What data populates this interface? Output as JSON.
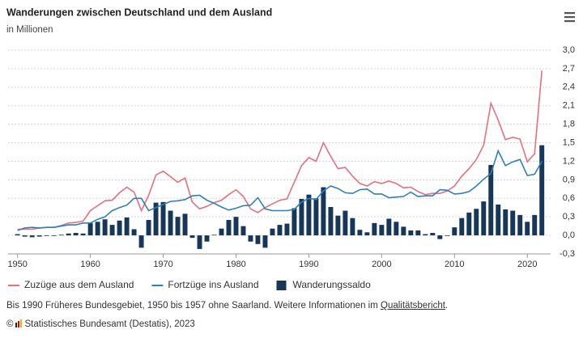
{
  "chart_data": {
    "type": "combo",
    "title": "Wanderungen zwischen Deutschland und dem Ausland",
    "subtitle": "in Millionen",
    "x": [
      1950,
      1951,
      1952,
      1953,
      1954,
      1955,
      1956,
      1957,
      1958,
      1959,
      1960,
      1961,
      1962,
      1963,
      1964,
      1965,
      1966,
      1967,
      1968,
      1969,
      1970,
      1971,
      1972,
      1973,
      1974,
      1975,
      1976,
      1977,
      1978,
      1979,
      1980,
      1981,
      1982,
      1983,
      1984,
      1985,
      1986,
      1987,
      1988,
      1989,
      1990,
      1991,
      1992,
      1993,
      1994,
      1995,
      1996,
      1997,
      1998,
      1999,
      2000,
      2001,
      2002,
      2003,
      2004,
      2005,
      2006,
      2007,
      2008,
      2009,
      2010,
      2011,
      2012,
      2013,
      2014,
      2015,
      2016,
      2017,
      2018,
      2019,
      2020,
      2021,
      2022
    ],
    "series": [
      {
        "name": "Zuzüge aus dem Ausland",
        "type": "line",
        "color": "#e5707f",
        "values": [
          0.1,
          0.1,
          0.1,
          0.12,
          0.13,
          0.13,
          0.16,
          0.2,
          0.21,
          0.23,
          0.4,
          0.48,
          0.56,
          0.57,
          0.69,
          0.78,
          0.7,
          0.4,
          0.65,
          0.98,
          1.04,
          0.95,
          0.86,
          0.93,
          0.54,
          0.43,
          0.47,
          0.53,
          0.57,
          0.66,
          0.74,
          0.63,
          0.43,
          0.37,
          0.45,
          0.51,
          0.57,
          0.59,
          0.86,
          1.13,
          1.26,
          1.2,
          1.5,
          1.28,
          1.08,
          1.1,
          0.96,
          0.84,
          0.8,
          0.87,
          0.84,
          0.88,
          0.84,
          0.77,
          0.78,
          0.71,
          0.66,
          0.68,
          0.68,
          0.72,
          0.8,
          0.96,
          1.08,
          1.23,
          1.46,
          2.14,
          1.87,
          1.55,
          1.59,
          1.56,
          1.19,
          1.32,
          2.67
        ]
      },
      {
        "name": "Fortzüge ins Ausland",
        "type": "line",
        "color": "#2f7fb8",
        "values": [
          0.08,
          0.12,
          0.13,
          0.12,
          0.13,
          0.13,
          0.15,
          0.17,
          0.17,
          0.2,
          0.2,
          0.26,
          0.3,
          0.4,
          0.45,
          0.49,
          0.6,
          0.6,
          0.4,
          0.45,
          0.5,
          0.55,
          0.56,
          0.58,
          0.64,
          0.65,
          0.57,
          0.52,
          0.46,
          0.41,
          0.44,
          0.48,
          0.49,
          0.61,
          0.43,
          0.4,
          0.4,
          0.4,
          0.42,
          0.54,
          0.6,
          0.58,
          0.72,
          0.8,
          0.76,
          0.69,
          0.68,
          0.74,
          0.75,
          0.67,
          0.67,
          0.61,
          0.62,
          0.63,
          0.7,
          0.63,
          0.64,
          0.64,
          0.74,
          0.73,
          0.67,
          0.68,
          0.71,
          0.8,
          0.91,
          1.0,
          1.37,
          1.13,
          1.19,
          1.23,
          0.97,
          0.99,
          1.2
        ]
      },
      {
        "name": "Wanderungssaldo",
        "type": "bar",
        "color": "#16375a",
        "values": [
          0.02,
          -0.02,
          -0.03,
          -0.02,
          -0.01,
          -0.01,
          0.01,
          0.03,
          0.04,
          0.03,
          0.2,
          0.22,
          0.26,
          0.17,
          0.24,
          0.29,
          0.1,
          -0.2,
          0.25,
          0.53,
          0.54,
          0.4,
          0.3,
          0.35,
          -0.04,
          -0.22,
          -0.1,
          0.01,
          0.11,
          0.25,
          0.3,
          0.15,
          -0.1,
          -0.14,
          -0.2,
          0.11,
          0.17,
          0.19,
          0.44,
          0.59,
          0.66,
          0.6,
          0.78,
          0.46,
          0.32,
          0.4,
          0.28,
          0.09,
          0.05,
          0.2,
          0.17,
          0.27,
          0.22,
          0.14,
          0.08,
          0.08,
          0.02,
          0.04,
          -0.06,
          -0.01,
          0.13,
          0.28,
          0.37,
          0.43,
          0.55,
          1.14,
          0.5,
          0.42,
          0.4,
          0.33,
          0.22,
          0.33,
          1.46
        ]
      }
    ],
    "xlim": [
      1948.7,
      2023.2
    ],
    "xticks": [
      1950,
      1960,
      1970,
      1980,
      1990,
      2000,
      2010,
      2020
    ],
    "ylim": [
      -0.3,
      3.0
    ],
    "yticks": [
      {
        "value": -0.3,
        "label": "-0,3"
      },
      {
        "value": 0,
        "label": "0,0"
      },
      {
        "value": 0.3,
        "label": "0,3"
      },
      {
        "value": 0.6,
        "label": "0,6"
      },
      {
        "value": 0.9,
        "label": "0,9"
      },
      {
        "value": 1.2,
        "label": "1,2"
      },
      {
        "value": 1.5,
        "label": "1,5"
      },
      {
        "value": 1.8,
        "label": "1,8"
      },
      {
        "value": 2.1,
        "label": "2,1"
      },
      {
        "value": 2.4,
        "label": "2,4"
      },
      {
        "value": 2.7,
        "label": "2,7"
      },
      {
        "value": 3.0,
        "label": "3,0"
      }
    ],
    "grid": true,
    "legend": "bottom",
    "note": {
      "text": "Bis 1990 Früheres Bundesgebiet, 1950 bis 1957 ohne Saarland. Weitere Informationen im",
      "link": "Qualitätsbericht",
      "end": "."
    },
    "source": "Statistisches Bundesamt (Destatis), 2023",
    "copyright": "©"
  }
}
